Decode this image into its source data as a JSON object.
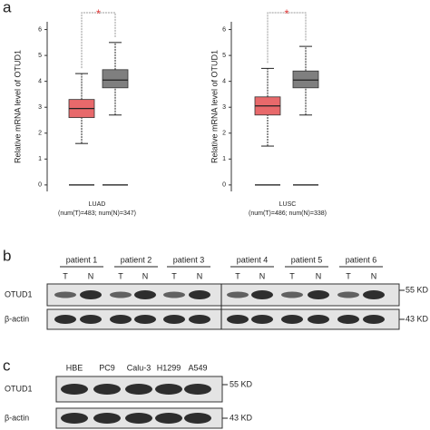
{
  "panel_labels": [
    "a",
    "b",
    "c"
  ],
  "chart_data": [
    {
      "type": "box",
      "ylabel": "Relative mRNA level of OTUD1",
      "xlabel": "LUAD",
      "subtitle": "(num(T)=483; num(N)=347)",
      "annotation": "*",
      "ylim": [
        -0.25,
        6.3
      ],
      "yticks": [
        0,
        1,
        2,
        3,
        4,
        5,
        6
      ],
      "boxes": [
        {
          "color": "#e8696b",
          "whislo": 1.6,
          "q1": 2.6,
          "med": 2.95,
          "q3": 3.3,
          "whishi": 4.3
        },
        {
          "color": "#7f7f7f",
          "whislo": 2.7,
          "q1": 3.75,
          "med": 4.05,
          "q3": 4.45,
          "whishi": 5.5
        }
      ]
    },
    {
      "type": "box",
      "ylabel": "Relative mRNA level of OTUD1",
      "xlabel": "LUSC",
      "subtitle": "(num(T)=486; num(N)=338)",
      "annotation": "*",
      "ylim": [
        -0.25,
        6.3
      ],
      "yticks": [
        0,
        1,
        2,
        3,
        4,
        5,
        6
      ],
      "boxes": [
        {
          "color": "#e8696b",
          "whislo": 1.5,
          "q1": 2.7,
          "med": 3.05,
          "q3": 3.4,
          "whishi": 4.5
        },
        {
          "color": "#7f7f7f",
          "whislo": 2.7,
          "q1": 3.75,
          "med": 4.05,
          "q3": 4.4,
          "whishi": 5.35
        }
      ]
    }
  ],
  "blot_b": {
    "groups": [
      "patient 1",
      "patient 2",
      "patient 3",
      "patient 4",
      "patient 5",
      "patient 6"
    ],
    "lanes": [
      "T",
      "N",
      "T",
      "N",
      "T",
      "N",
      "T",
      "N",
      "T",
      "N",
      "T",
      "N"
    ],
    "rows": [
      "OTUD1",
      "β-actin"
    ],
    "markers": [
      "55 KD",
      "43 KD"
    ]
  },
  "blot_c": {
    "lanes": [
      "HBE",
      "PC9",
      "Calu-3",
      "H1299",
      "A549"
    ],
    "rows": [
      "OTUD1",
      "β-actin"
    ],
    "markers": [
      "55 KD",
      "43 KD"
    ]
  }
}
